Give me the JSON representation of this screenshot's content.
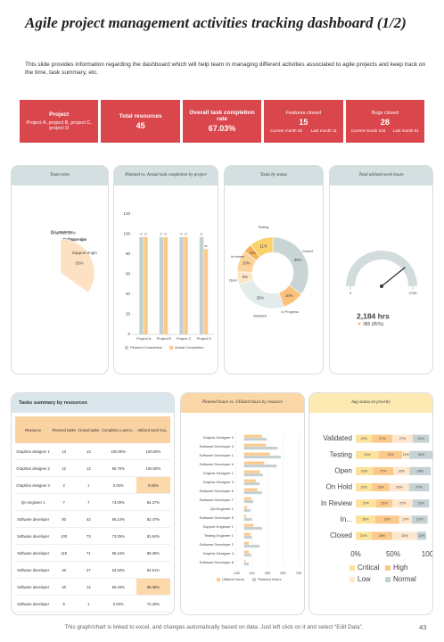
{
  "header": {
    "title": "Agile project management activities tracking dashboard (1/2)",
    "subtitle": "This slide provides information regarding the dashboard which will help team in managing different activities associated to agile projects and keep track on the time, task summary, etc."
  },
  "kpis": [
    {
      "label": "Project",
      "value": "Project A, project B, project C, project D"
    },
    {
      "label": "Total resources",
      "value": 45
    },
    {
      "label": "Overall task completion rate",
      "value": "67.03%"
    },
    {
      "label": "Features closed",
      "value": 15,
      "current": "Current month 25",
      "last": "Last month 11"
    },
    {
      "label": "Bugs closed",
      "value": 28,
      "current": "Current month 126",
      "last": "Last month 91"
    }
  ],
  "chart_data": [
    {
      "type": "pie",
      "title": "Team roles",
      "categories": [
        "Software dev",
        "Graphics Desi",
        "Testing engin",
        "QA engineer",
        "Support engin"
      ],
      "values": [
        20,
        11,
        20,
        9,
        32
      ],
      "value_labels": [
        "20%",
        "11%",
        "20%",
        "9%",
        "32%"
      ],
      "colors": [
        "#a9b9bb",
        "#7f9c9c",
        "#fcc98c",
        "#fde9d0",
        "#fde1c2"
      ]
    },
    {
      "type": "bar",
      "title": "Planned vs. Actual task completion by project",
      "categories": [
        "Project A",
        "Project B",
        "Project C",
        "Project D"
      ],
      "series": [
        {
          "name": "Planned Completion",
          "color": "#c3cfd0",
          "values": [
            97,
            97,
            97,
            97
          ]
        },
        {
          "name": "Actual Completion",
          "color": "#fbc98c",
          "values": [
            97,
            97,
            97,
            85
          ]
        }
      ],
      "ylim": [
        0,
        120
      ],
      "yticks": [
        0,
        20,
        40,
        60,
        80,
        100,
        120
      ],
      "grid": false
    },
    {
      "type": "donut",
      "title": "Tasks by status",
      "categories": [
        "Closed",
        "In Progress",
        "Validated",
        "Open",
        "In review",
        null,
        "Testing"
      ],
      "values": [
        36,
        10,
        25,
        6,
        10,
        4,
        11
      ],
      "value_labels": [
        "36%",
        "10%",
        "25%",
        "6%",
        "10%",
        "4%",
        "11%"
      ],
      "colors": [
        "#c9d4d4",
        "#fbc27c",
        "#e4ebeb",
        "#fde6c6",
        "#fbd49c",
        "#f5b25c",
        "#fbd16c"
      ]
    },
    {
      "type": "gauge",
      "title": "Total utilized work hours",
      "value": 2184,
      "value_label": "2,184 hrs",
      "note": "385 (85%)",
      "ylim": [
        0,
        2784
      ],
      "yticks": [
        0,
        2784
      ],
      "color": "#d3dcdc"
    },
    {
      "type": "barh",
      "title": "Planned hours vs. Utilized hours by resource",
      "categories": [
        "Graphic Designer 2",
        "Software Developer 3",
        "Software Developer 1",
        "Software Developer 4",
        "Graphic Designer 1",
        "Graphic Designer 3",
        "Software Developer 6",
        "Software Developer 7",
        "QA Engineer 1",
        "Software Developer 5",
        "Support Engineer 1",
        "Testing Engineer 1",
        "Software Developer 2",
        "Graphic Designer 4",
        "Software Developer 8"
      ],
      "series": [
        {
          "name": "Utilized Hours",
          "color": "#fbc98c",
          "values": [
            230,
            280,
            330,
            260,
            200,
            150,
            170,
            90,
            40,
            30,
            120,
            80,
            60,
            60,
            20
          ]
        },
        {
          "name": "Planned Hours",
          "color": "#c5d0d0",
          "values": [
            290,
            430,
            470,
            420,
            240,
            200,
            230,
            120,
            80,
            100,
            230,
            100,
            200,
            90,
            60
          ]
        }
      ],
      "xlim": [
        -100,
        700
      ],
      "xticks": [
        -100,
        100,
        300,
        500,
        700
      ],
      "grid": true
    },
    {
      "type": "stacked_barh",
      "title": "bug status on priority",
      "categories": [
        "Validated",
        "Testing",
        "Open",
        "On Hold",
        "In Review",
        "In...",
        "Closed"
      ],
      "series": [
        {
          "name": "Critical",
          "color": "#fbe39c",
          "values": [
            22,
            31,
            23,
            22,
            27,
            26,
            21
          ],
          "value_labels": [
            "22%",
            "31%",
            "23%",
            "22%",
            "27%",
            "26%",
            "21%"
          ]
        },
        {
          "name": "High",
          "color": "#fbc98c",
          "values": [
            27,
            31,
            27,
            23,
            22,
            32,
            28
          ],
          "value_labels": [
            "27%",
            "31%",
            "27%",
            "23%",
            "22%",
            "32%",
            "28%"
          ]
        },
        {
          "name": "Low",
          "color": "#fde7cf",
          "values": [
            27,
            10,
            22,
            26,
            27,
            17,
            33
          ],
          "value_labels": [
            "27%",
            "10%",
            "22%",
            "26%",
            "27%",
            "17%",
            "33%"
          ]
        },
        {
          "name": "Normal",
          "color": "#c4d2d3",
          "values": [
            22,
            31,
            28,
            27,
            22,
            21,
            12
          ],
          "value_labels": [
            "22%",
            "31%",
            "28%",
            "27%",
            "22%",
            "21%",
            "12%"
          ]
        }
      ],
      "xlim": [
        0,
        100
      ],
      "xticks": [
        {
          "value": 0,
          "label": "0%"
        },
        {
          "value": 50,
          "label": "50%"
        },
        {
          "value": 100,
          "label": "100%"
        }
      ]
    }
  ],
  "table": {
    "title": "Tasks summary by resources",
    "columns": [
      "Resource",
      "Planned tasks",
      "Closed tasks",
      "Completio n perce...",
      "Utilized work hou..."
    ],
    "rows": [
      [
        "Graphics designer 1",
        13,
        13,
        "100.00%",
        "100.00%"
      ],
      [
        "Graphics designer 2",
        12,
        12,
        "95.70%",
        "100.00%"
      ],
      [
        "Graphics designer 3",
        2,
        1,
        "0.00%",
        "0.00%"
      ],
      [
        "QA engineer 1",
        7,
        7,
        "74.00%",
        "84.37%"
      ],
      [
        "Software developer",
        93,
        42,
        "65.14%",
        "82.47%"
      ],
      [
        "Software developer",
        100,
        73,
        "73.25%",
        "81.54%"
      ],
      [
        "Software developer",
        115,
        71,
        "65.44%",
        "86.35%"
      ],
      [
        "Software developer",
        40,
        27,
        "53.40%",
        "84.51%"
      ],
      [
        "Software developer",
        40,
        14,
        "66.33%",
        "68.45%"
      ],
      [
        "Software developer",
        5,
        1,
        "0.00%",
        "72.40%"
      ],
      [
        "Software developer",
        15,
        14,
        "93.74%",
        "90.00%"
      ]
    ]
  },
  "footer": {
    "text": "This graph/chart is linked to excel, and changes automatically based on data. Just left click on it and select “Edit Data”.",
    "page": 43
  }
}
